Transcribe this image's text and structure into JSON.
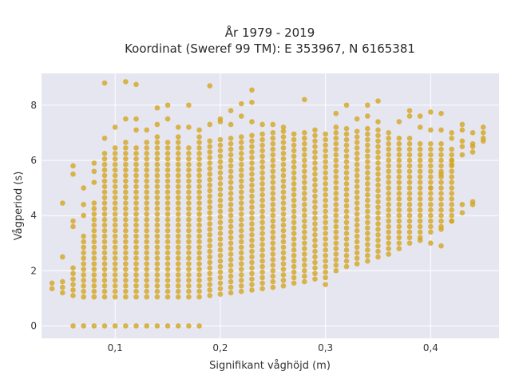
{
  "chart_data": {
    "type": "scatter",
    "title_line1": "År 1979 - 2019",
    "title_line2": "Koordinat (Sweref 99 TM): E 353967, N 6165381",
    "xlabel": "Signifikant våghöjd (m)",
    "ylabel": "Vågperiod (s)",
    "xlim": [
      0.03,
      0.465
    ],
    "ylim": [
      -0.45,
      9.15
    ],
    "xticks": [
      {
        "value": 0.1,
        "label": "0,1"
      },
      {
        "value": 0.2,
        "label": "0,2"
      },
      {
        "value": 0.3,
        "label": "0,3"
      },
      {
        "value": 0.4,
        "label": "0,4"
      }
    ],
    "yticks": [
      {
        "value": 0,
        "label": "0"
      },
      {
        "value": 2,
        "label": "2"
      },
      {
        "value": 4,
        "label": "4"
      },
      {
        "value": 6,
        "label": "6"
      },
      {
        "value": 8,
        "label": "8"
      }
    ],
    "grid": true,
    "marker_color": "#d4a520",
    "background_color": "#e5e6f0",
    "x_step": 0.01,
    "columns": [
      {
        "x": 0.04,
        "ymin": 1.35,
        "ymax": 1.55
      },
      {
        "x": 0.05,
        "ymin": 1.2,
        "ymax": 1.6
      },
      {
        "x": 0.06,
        "ymin": 1.1,
        "ymax": 2.2
      },
      {
        "x": 0.07,
        "ymin": 1.05,
        "ymax": 3.4
      },
      {
        "x": 0.08,
        "ymin": 1.05,
        "ymax": 4.6
      },
      {
        "x": 0.09,
        "ymin": 1.05,
        "ymax": 6.3
      },
      {
        "x": 0.1,
        "ymin": 1.05,
        "ymax": 6.6
      },
      {
        "x": 0.11,
        "ymin": 1.05,
        "ymax": 6.8
      },
      {
        "x": 0.12,
        "ymin": 1.05,
        "ymax": 6.6
      },
      {
        "x": 0.13,
        "ymin": 1.05,
        "ymax": 6.8
      },
      {
        "x": 0.14,
        "ymin": 1.05,
        "ymax": 6.9
      },
      {
        "x": 0.15,
        "ymin": 1.05,
        "ymax": 6.8
      },
      {
        "x": 0.16,
        "ymin": 1.05,
        "ymax": 6.9
      },
      {
        "x": 0.17,
        "ymin": 1.05,
        "ymax": 6.6
      },
      {
        "x": 0.18,
        "ymin": 1.05,
        "ymax": 6.9
      },
      {
        "x": 0.19,
        "ymin": 1.1,
        "ymax": 6.7
      },
      {
        "x": 0.2,
        "ymin": 1.15,
        "ymax": 6.9
      },
      {
        "x": 0.21,
        "ymin": 1.2,
        "ymax": 6.9
      },
      {
        "x": 0.22,
        "ymin": 1.25,
        "ymax": 7.0
      },
      {
        "x": 0.23,
        "ymin": 1.3,
        "ymax": 7.0
      },
      {
        "x": 0.24,
        "ymin": 1.35,
        "ymax": 7.1
      },
      {
        "x": 0.25,
        "ymin": 1.4,
        "ymax": 7.1
      },
      {
        "x": 0.26,
        "ymin": 1.45,
        "ymax": 7.1
      },
      {
        "x": 0.27,
        "ymin": 1.55,
        "ymax": 7.1
      },
      {
        "x": 0.28,
        "ymin": 1.6,
        "ymax": 7.1
      },
      {
        "x": 0.29,
        "ymin": 1.7,
        "ymax": 7.1
      },
      {
        "x": 0.3,
        "ymin": 1.75,
        "ymax": 7.1
      },
      {
        "x": 0.31,
        "ymin": 2.0,
        "ymax": 7.2
      },
      {
        "x": 0.32,
        "ymin": 2.15,
        "ymax": 7.3
      },
      {
        "x": 0.33,
        "ymin": 2.25,
        "ymax": 7.2
      },
      {
        "x": 0.34,
        "ymin": 2.35,
        "ymax": 7.2
      },
      {
        "x": 0.35,
        "ymin": 2.5,
        "ymax": 7.1
      },
      {
        "x": 0.36,
        "ymin": 2.6,
        "ymax": 7.0
      },
      {
        "x": 0.37,
        "ymin": 2.8,
        "ymax": 6.9
      },
      {
        "x": 0.38,
        "ymin": 3.0,
        "ymax": 6.8
      },
      {
        "x": 0.39,
        "ymin": 3.2,
        "ymax": 6.7
      },
      {
        "x": 0.4,
        "ymin": 3.4,
        "ymax": 6.7
      },
      {
        "x": 0.41,
        "ymin": 3.6,
        "ymax": 6.6
      },
      {
        "x": 0.42,
        "ymin": 3.8,
        "ymax": 6.5
      }
    ],
    "outliers": [
      [
        0.05,
        4.45
      ],
      [
        0.05,
        2.5
      ],
      [
        0.06,
        5.8
      ],
      [
        0.06,
        5.5
      ],
      [
        0.06,
        3.8
      ],
      [
        0.06,
        3.6
      ],
      [
        0.07,
        5.0
      ],
      [
        0.07,
        4.4
      ],
      [
        0.07,
        4.0
      ],
      [
        0.08,
        5.9
      ],
      [
        0.08,
        5.6
      ],
      [
        0.08,
        5.2
      ],
      [
        0.09,
        8.8
      ],
      [
        0.09,
        6.8
      ],
      [
        0.1,
        7.2
      ],
      [
        0.11,
        8.85
      ],
      [
        0.11,
        7.5
      ],
      [
        0.12,
        8.75
      ],
      [
        0.12,
        7.5
      ],
      [
        0.12,
        7.1
      ],
      [
        0.13,
        7.1
      ],
      [
        0.14,
        7.9
      ],
      [
        0.14,
        7.3
      ],
      [
        0.15,
        8.0
      ],
      [
        0.15,
        7.5
      ],
      [
        0.16,
        7.2
      ],
      [
        0.17,
        8.0
      ],
      [
        0.17,
        7.2
      ],
      [
        0.18,
        7.1
      ],
      [
        0.19,
        8.7
      ],
      [
        0.19,
        7.3
      ],
      [
        0.2,
        7.4
      ],
      [
        0.2,
        7.5
      ],
      [
        0.21,
        7.3
      ],
      [
        0.21,
        7.8
      ],
      [
        0.22,
        8.05
      ],
      [
        0.22,
        7.6
      ],
      [
        0.23,
        8.55
      ],
      [
        0.23,
        8.1
      ],
      [
        0.23,
        7.4
      ],
      [
        0.24,
        7.3
      ],
      [
        0.25,
        7.3
      ],
      [
        0.26,
        7.2
      ],
      [
        0.28,
        8.2
      ],
      [
        0.3,
        1.5
      ],
      [
        0.31,
        7.7
      ],
      [
        0.32,
        8.0
      ],
      [
        0.33,
        7.5
      ],
      [
        0.34,
        8.0
      ],
      [
        0.34,
        7.6
      ],
      [
        0.35,
        8.15
      ],
      [
        0.35,
        7.4
      ],
      [
        0.37,
        7.4
      ],
      [
        0.38,
        7.8
      ],
      [
        0.38,
        7.6
      ],
      [
        0.39,
        7.6
      ],
      [
        0.39,
        7.2
      ],
      [
        0.4,
        7.75
      ],
      [
        0.4,
        7.1
      ],
      [
        0.41,
        7.7
      ],
      [
        0.41,
        7.1
      ],
      [
        0.4,
        3.0
      ],
      [
        0.39,
        3.1
      ],
      [
        0.41,
        3.5
      ],
      [
        0.42,
        3.8
      ],
      [
        0.42,
        6.8
      ],
      [
        0.42,
        7.0
      ],
      [
        0.42,
        6.0
      ],
      [
        0.42,
        5.85
      ],
      [
        0.43,
        7.3
      ],
      [
        0.43,
        7.1
      ],
      [
        0.43,
        6.7
      ],
      [
        0.43,
        6.5
      ],
      [
        0.43,
        6.2
      ],
      [
        0.43,
        4.4
      ],
      [
        0.43,
        4.1
      ],
      [
        0.44,
        7.0
      ],
      [
        0.44,
        6.6
      ],
      [
        0.44,
        6.5
      ],
      [
        0.44,
        6.3
      ],
      [
        0.44,
        4.5
      ],
      [
        0.44,
        4.4
      ],
      [
        0.45,
        7.2
      ],
      [
        0.45,
        7.0
      ],
      [
        0.45,
        6.8
      ],
      [
        0.45,
        6.7
      ],
      [
        0.4,
        5.0
      ],
      [
        0.41,
        5.5
      ],
      [
        0.41,
        2.9
      ]
    ],
    "zero_row": [
      0.06,
      0.07,
      0.08,
      0.09,
      0.1,
      0.11,
      0.12,
      0.13,
      0.14,
      0.15,
      0.16,
      0.17,
      0.18
    ]
  }
}
